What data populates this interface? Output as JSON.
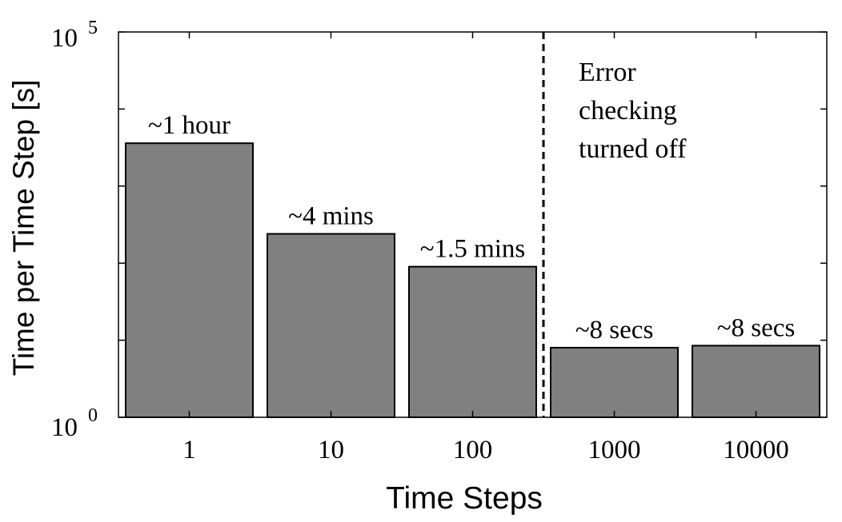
{
  "chart_data": {
    "type": "bar",
    "scale": "log",
    "xlabel": "Time Steps",
    "ylabel": "Time per Time Step [s]",
    "categories": [
      "1",
      "10",
      "100",
      "1000",
      "10000"
    ],
    "values": [
      3600,
      240,
      90,
      8,
      8.5
    ],
    "data_labels": [
      "~1 hour",
      "~4 mins",
      "~1.5 mins",
      "~8 secs",
      "~8 secs"
    ],
    "ylim": [
      1,
      100000
    ],
    "y_ticks": [
      {
        "base": "10",
        "exp": "0"
      },
      {
        "base": "10",
        "exp": "5"
      }
    ],
    "annotation": {
      "lines": [
        "Error",
        "checking",
        "turned off"
      ],
      "divider_after_category": "100",
      "divider_style": "dashed"
    },
    "bar_color": "#808080",
    "grid": false
  }
}
